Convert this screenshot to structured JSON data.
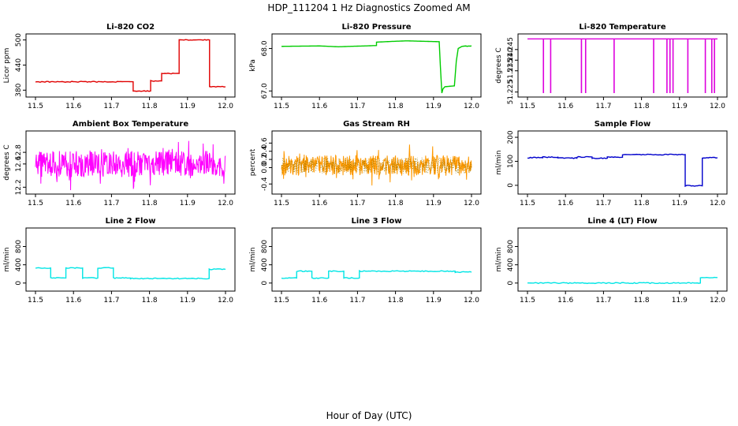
{
  "title": "HDP_111204  1 Hz Diagnostics Zoomed AM",
  "xlabel": "Hour of Day (UTC)",
  "chart_data": [
    {
      "type": "line",
      "title": "Li-820 CO2",
      "ylabel": "Licor ppm",
      "color": "#e00000",
      "xlim": [
        11.5,
        12.0
      ],
      "ylim": [
        373,
        505
      ],
      "xticks": [
        "11.5",
        "11.6",
        "11.7",
        "11.8",
        "11.9",
        "12.0"
      ],
      "yticks": [
        "380",
        "440",
        "500"
      ],
      "ytick_values": [
        380,
        440,
        500
      ],
      "x": [
        11.5,
        11.757,
        11.757,
        11.803,
        11.803,
        11.832,
        11.832,
        11.878,
        11.878,
        11.958,
        11.958,
        12.0
      ],
      "y": [
        400,
        400,
        378,
        378,
        402,
        402,
        420,
        420,
        500,
        500,
        388,
        388
      ]
    },
    {
      "type": "line",
      "title": "Li-820 Pressure",
      "ylabel": "kPa",
      "color": "#00cc00",
      "xlim": [
        11.5,
        12.0
      ],
      "ylim": [
        66.95,
        68.25
      ],
      "xticks": [
        "11.5",
        "11.6",
        "11.7",
        "11.8",
        "11.9",
        "12.0"
      ],
      "yticks": [
        "67.0",
        "68.0"
      ],
      "ytick_values": [
        67.0,
        68.0
      ],
      "x": [
        11.5,
        11.6,
        11.65,
        11.68,
        11.72,
        11.75,
        11.75,
        11.8,
        11.83,
        11.87,
        11.915,
        11.918,
        11.922,
        11.925,
        11.93,
        11.955,
        11.96,
        11.965,
        11.975,
        11.985,
        12.0
      ],
      "y": [
        68.05,
        68.06,
        68.04,
        68.05,
        68.06,
        68.07,
        68.15,
        68.17,
        68.18,
        68.17,
        68.16,
        67.6,
        66.95,
        67.05,
        67.1,
        67.12,
        67.7,
        68.0,
        68.05,
        68.06,
        68.06
      ]
    },
    {
      "type": "line",
      "title": "Li-820 Temperature",
      "ylabel": "degrees C",
      "color": "#dd00dd",
      "xlim": [
        11.5,
        12.0
      ],
      "ylim": [
        51.2245,
        51.2505
      ],
      "xticks": [
        "11.5",
        "11.6",
        "11.7",
        "11.8",
        "11.9",
        "12.0"
      ],
      "yticks": [
        "51.225",
        "51.235",
        "51.240",
        "51.245"
      ],
      "ytick_values": [
        51.225,
        51.235,
        51.24,
        51.245
      ],
      "baseline": 51.25,
      "dip_to": 51.2245,
      "dips": [
        11.542,
        11.561,
        11.642,
        11.653,
        11.728,
        11.832,
        11.867,
        11.875,
        11.883,
        11.922,
        11.968,
        11.985,
        11.992
      ]
    },
    {
      "type": "line",
      "title": "Ambient Box Temperature",
      "ylabel": "degrees C",
      "color": "#ff00ff",
      "xlim": [
        11.5,
        12.0
      ],
      "ylim": [
        12.15,
        13.1
      ],
      "xticks": [
        "11.5",
        "11.6",
        "11.7",
        "11.8",
        "11.9",
        "12.0"
      ],
      "yticks": [
        "12.2",
        "12.6",
        "12.8"
      ],
      "ytick_values": [
        12.2,
        12.6,
        12.8
      ],
      "noise": {
        "mean": 12.6,
        "amplitude": 0.45
      }
    },
    {
      "type": "line",
      "title": "Gas Stream RH",
      "ylabel": "percent",
      "color": "#ff9900",
      "color2": "#997700",
      "xlim": [
        11.5,
        12.0
      ],
      "ylim": [
        -0.55,
        0.8
      ],
      "xticks": [
        "11.5",
        "11.6",
        "11.7",
        "11.8",
        "11.9",
        "12.0"
      ],
      "yticks": [
        "-0.4",
        "0.0",
        "0.2",
        "0.4",
        "0.6"
      ],
      "ytick_values": [
        -0.4,
        0.0,
        0.2,
        0.4,
        0.6
      ],
      "noise": {
        "mean": 0.05,
        "amplitude": 0.5
      }
    },
    {
      "type": "line",
      "title": "Sample Flow",
      "ylabel": "ml/min",
      "color": "#0000cc",
      "xlim": [
        11.5,
        12.0
      ],
      "ylim": [
        -20,
        210
      ],
      "xticks": [
        "11.5",
        "11.6",
        "11.7",
        "11.8",
        "11.9",
        "12.0"
      ],
      "yticks": [
        "0",
        "100",
        "200"
      ],
      "ytick_values": [
        0,
        100,
        200
      ],
      "x": [
        11.5,
        11.54,
        11.54,
        11.58,
        11.58,
        11.63,
        11.63,
        11.67,
        11.67,
        11.71,
        11.71,
        11.75,
        11.75,
        11.915,
        11.915,
        11.96,
        11.96,
        12.0
      ],
      "y": [
        115,
        115,
        117,
        117,
        113,
        113,
        118,
        118,
        113,
        113,
        117,
        117,
        128,
        128,
        -2,
        -2,
        115,
        115
      ]
    },
    {
      "type": "line",
      "title": "Line 2 Flow",
      "ylabel": "ml/min",
      "color": "#00e5e5",
      "xlim": [
        11.5,
        12.0
      ],
      "ylim": [
        -90,
        1120
      ],
      "xticks": [
        "11.5",
        "11.6",
        "11.7",
        "11.8",
        "11.9",
        "12.0"
      ],
      "yticks": [
        "0",
        "400",
        "800"
      ],
      "ytick_values": [
        0,
        400,
        800
      ],
      "x": [
        11.5,
        11.54,
        11.54,
        11.58,
        11.58,
        11.624,
        11.624,
        11.664,
        11.664,
        11.705,
        11.705,
        11.75,
        11.75,
        11.957,
        11.957,
        12.0
      ],
      "y": [
        330,
        330,
        110,
        110,
        330,
        330,
        110,
        110,
        330,
        330,
        110,
        110,
        100,
        100,
        300,
        300
      ]
    },
    {
      "type": "line",
      "title": "Line 3 Flow",
      "ylabel": "ml/min",
      "color": "#00e5e5",
      "xlim": [
        11.5,
        12.0
      ],
      "ylim": [
        -90,
        1120
      ],
      "xticks": [
        "11.5",
        "11.6",
        "11.7",
        "11.8",
        "11.9",
        "12.0"
      ],
      "yticks": [
        "0",
        "400",
        "800"
      ],
      "ytick_values": [
        0,
        400,
        800
      ],
      "x": [
        11.5,
        11.54,
        11.54,
        11.58,
        11.58,
        11.624,
        11.624,
        11.664,
        11.664,
        11.705,
        11.705,
        11.957,
        11.957,
        12.0
      ],
      "y": [
        110,
        110,
        260,
        260,
        110,
        110,
        260,
        260,
        110,
        110,
        260,
        260,
        240,
        240
      ]
    },
    {
      "type": "line",
      "title": "Line 4 (LT) Flow",
      "ylabel": "ml/min",
      "color": "#00e5e5",
      "xlim": [
        11.5,
        12.0
      ],
      "ylim": [
        -90,
        1120
      ],
      "xticks": [
        "11.5",
        "11.6",
        "11.7",
        "11.8",
        "11.9",
        "12.0"
      ],
      "yticks": [
        "0",
        "400",
        "800"
      ],
      "ytick_values": [
        0,
        400,
        800
      ],
      "x": [
        11.5,
        11.955,
        11.955,
        12.0
      ],
      "y": [
        0,
        0,
        120,
        120
      ]
    }
  ]
}
